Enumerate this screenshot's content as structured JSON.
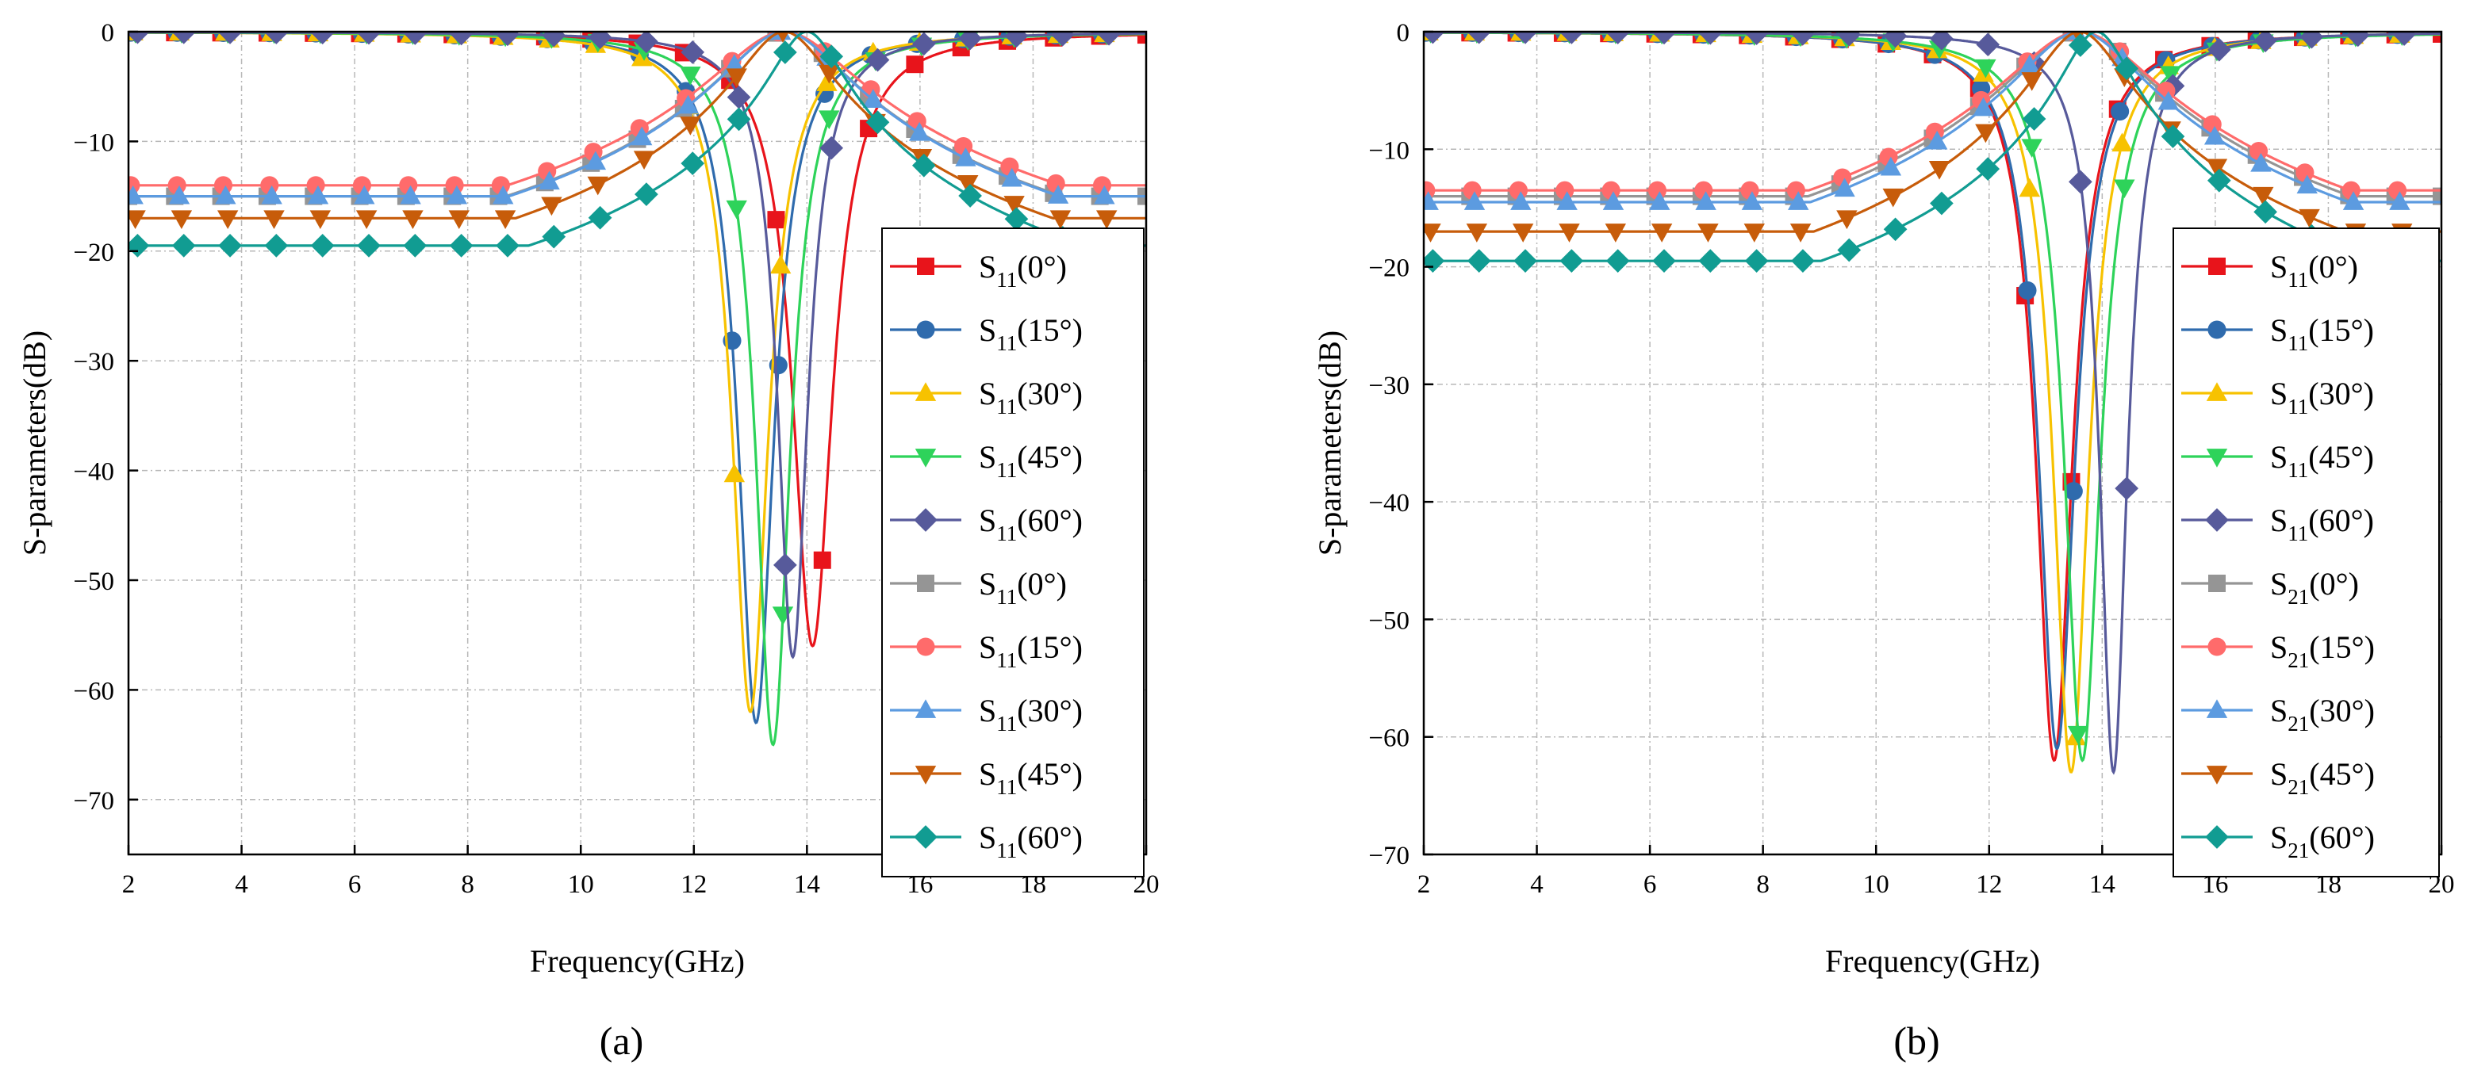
{
  "chart_data": [
    {
      "type": "line",
      "panel_label": "(a)",
      "xlabel": "Frequency(GHz)",
      "ylabel": "S-parameters(dB)",
      "xlim": [
        2,
        20
      ],
      "ylim": [
        -75,
        0
      ],
      "xticks": [
        2,
        4,
        6,
        8,
        10,
        12,
        14,
        16,
        18,
        20
      ],
      "yticks": [
        0,
        -10,
        -20,
        -30,
        -40,
        -50,
        -60,
        -70
      ],
      "grid": true,
      "legend_position": "right",
      "series": [
        {
          "name": "S11(0°)",
          "base": "S",
          "sub": "11",
          "angle": "(0°)",
          "color": "#e8141b",
          "marker": "square",
          "curve": "notch",
          "f0": 14.1,
          "depth": -56,
          "q": 0.8
        },
        {
          "name": "S11(15°)",
          "base": "S",
          "sub": "11",
          "angle": "(15°)",
          "color": "#2f6bad",
          "marker": "circle",
          "curve": "notch",
          "f0": 13.1,
          "depth": -63,
          "q": 0.8
        },
        {
          "name": "S11(30°)",
          "base": "S",
          "sub": "11",
          "angle": "(30°)",
          "color": "#f7c200",
          "marker": "triangle-up",
          "curve": "notch",
          "f0": 13.0,
          "depth": -62,
          "q": 0.8
        },
        {
          "name": "S11(45°)",
          "base": "S",
          "sub": "11",
          "angle": "(45°)",
          "color": "#2ed35a",
          "marker": "triangle-down",
          "curve": "notch",
          "f0": 13.4,
          "depth": -65,
          "q": 0.8
        },
        {
          "name": "S11(60°)",
          "base": "S",
          "sub": "11",
          "angle": "(60°)",
          "color": "#575a9b",
          "marker": "diamond",
          "curve": "notch",
          "f0": 13.75,
          "depth": -57,
          "q": 0.62
        },
        {
          "name": "S11(0°)",
          "base": "S",
          "sub": "11",
          "angle": "(0°)",
          "color": "#959595",
          "marker": "square",
          "curve": "pass",
          "f0": 13.6,
          "w": 5.0,
          "min": -15
        },
        {
          "name": "S11(15°)",
          "base": "S",
          "sub": "11",
          "angle": "(15°)",
          "color": "#ff6b6b",
          "marker": "circle",
          "curve": "pass",
          "f0": 13.6,
          "w": 5.0,
          "min": -14
        },
        {
          "name": "S11(30°)",
          "base": "S",
          "sub": "11",
          "angle": "(30°)",
          "color": "#5c9be0",
          "marker": "triangle-up",
          "curve": "pass",
          "f0": 13.6,
          "w": 4.95,
          "min": -15
        },
        {
          "name": "S11(45°)",
          "base": "S",
          "sub": "11",
          "angle": "(45°)",
          "color": "#c75c0a",
          "marker": "triangle-down",
          "curve": "pass",
          "f0": 13.6,
          "w": 4.8,
          "min": -17
        },
        {
          "name": "S11(60°)",
          "base": "S",
          "sub": "11",
          "angle": "(60°)",
          "color": "#119c92",
          "marker": "diamond",
          "curve": "pass",
          "f0": 14.0,
          "w": 4.95,
          "min": -19.5
        }
      ]
    },
    {
      "type": "line",
      "panel_label": "(b)",
      "xlabel": "Frequency(GHz)",
      "ylabel": "S-parameters(dB)",
      "xlim": [
        2,
        20
      ],
      "ylim": [
        -70,
        0
      ],
      "xticks": [
        2,
        4,
        6,
        8,
        10,
        12,
        14,
        16,
        18,
        20
      ],
      "yticks": [
        0,
        -10,
        -20,
        -30,
        -40,
        -50,
        -60,
        -70
      ],
      "grid": true,
      "legend_position": "right",
      "series": [
        {
          "name": "S11(0°)",
          "base": "S",
          "sub": "11",
          "angle": "(0°)",
          "color": "#e8141b",
          "marker": "square",
          "curve": "notch",
          "f0": 13.15,
          "depth": -62,
          "q": 0.8
        },
        {
          "name": "S11(15°)",
          "base": "S",
          "sub": "11",
          "angle": "(15°)",
          "color": "#2f6bad",
          "marker": "circle",
          "curve": "notch",
          "f0": 13.2,
          "depth": -61,
          "q": 0.8
        },
        {
          "name": "S11(30°)",
          "base": "S",
          "sub": "11",
          "angle": "(30°)",
          "color": "#f7c200",
          "marker": "triangle-up",
          "curve": "notch",
          "f0": 13.45,
          "depth": -63,
          "q": 0.8
        },
        {
          "name": "S11(45°)",
          "base": "S",
          "sub": "11",
          "angle": "(45°)",
          "color": "#2ed35a",
          "marker": "triangle-down",
          "curve": "notch",
          "f0": 13.65,
          "depth": -62,
          "q": 0.8
        },
        {
          "name": "S11(60°)",
          "base": "S",
          "sub": "11",
          "angle": "(60°)",
          "color": "#575a9b",
          "marker": "diamond",
          "curve": "notch",
          "f0": 14.2,
          "depth": -63,
          "q": 0.62
        },
        {
          "name": "S21(0°)",
          "base": "S",
          "sub": "21",
          "angle": "(0°)",
          "color": "#959595",
          "marker": "square",
          "curve": "pass",
          "f0": 13.6,
          "w": 4.9,
          "min": -14
        },
        {
          "name": "S21(15°)",
          "base": "S",
          "sub": "21",
          "angle": "(15°)",
          "color": "#ff6b6b",
          "marker": "circle",
          "curve": "pass",
          "f0": 13.6,
          "w": 4.9,
          "min": -13.5
        },
        {
          "name": "S21(30°)",
          "base": "S",
          "sub": "21",
          "angle": "(30°)",
          "color": "#5c9be0",
          "marker": "triangle-up",
          "curve": "pass",
          "f0": 13.6,
          "w": 4.85,
          "min": -14.5
        },
        {
          "name": "S21(45°)",
          "base": "S",
          "sub": "21",
          "angle": "(45°)",
          "color": "#c75c0a",
          "marker": "triangle-down",
          "curve": "pass",
          "f0": 13.6,
          "w": 4.75,
          "min": -17
        },
        {
          "name": "S21(60°)",
          "base": "S",
          "sub": "21",
          "angle": "(60°)",
          "color": "#119c92",
          "marker": "diamond",
          "curve": "pass",
          "f0": 13.9,
          "w": 4.9,
          "min": -19.5
        }
      ]
    }
  ]
}
